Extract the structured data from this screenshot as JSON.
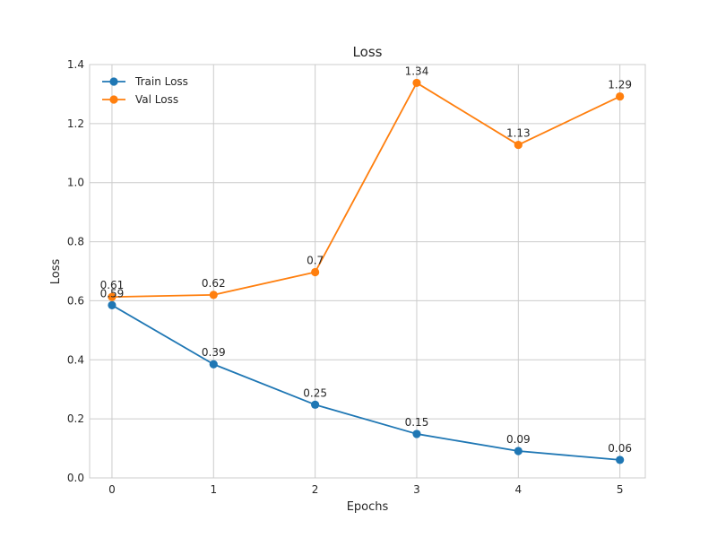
{
  "chart_data": {
    "type": "line",
    "title": "Loss",
    "xlabel": "Epochs",
    "ylabel": "Loss",
    "x": [
      0,
      1,
      2,
      3,
      4,
      5
    ],
    "xlim": [
      -0.22,
      5.25
    ],
    "ylim": [
      0,
      1.4
    ],
    "yticks": [
      0.0,
      0.2,
      0.4,
      0.6,
      0.8,
      1.0,
      1.2,
      1.4
    ],
    "ytick_labels": [
      "0.0",
      "0.2",
      "0.4",
      "0.6",
      "0.8",
      "1.0",
      "1.2",
      "1.4"
    ],
    "xtick_labels": [
      "0",
      "1",
      "2",
      "3",
      "4",
      "5"
    ],
    "grid": true,
    "legend_position": "top-left",
    "series": [
      {
        "name": "Train Loss",
        "color": "#1f77b4",
        "values": [
          0.585,
          0.385,
          0.248,
          0.149,
          0.091,
          0.061
        ],
        "labels": [
          "0.59",
          "0.39",
          "0.25",
          "0.15",
          "0.09",
          "0.06"
        ]
      },
      {
        "name": "Val Loss",
        "color": "#ff7f0e",
        "values": [
          0.613,
          0.62,
          0.697,
          1.338,
          1.128,
          1.292
        ],
        "labels": [
          "0.61",
          "0.62",
          "0.7",
          "1.34",
          "1.13",
          "1.29"
        ]
      }
    ]
  }
}
